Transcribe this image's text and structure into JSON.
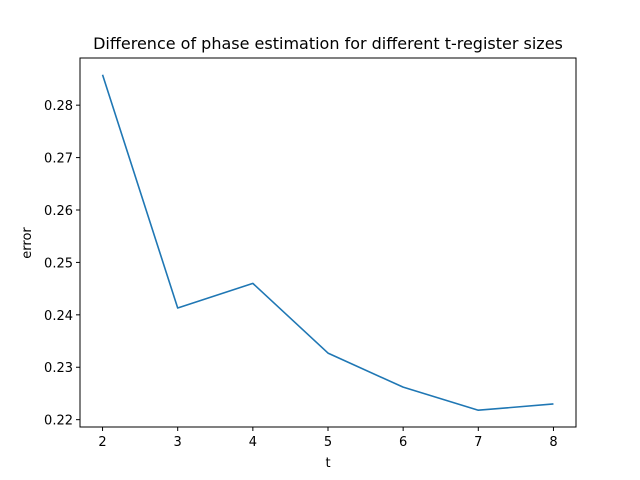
{
  "chart_data": {
    "type": "line",
    "title": "Difference of phase estimation for different t-register sizes",
    "xlabel": "t",
    "ylabel": "error",
    "x": [
      2,
      3,
      4,
      5,
      6,
      7,
      8
    ],
    "series": [
      {
        "values": [
          0.2858,
          0.2413,
          0.246,
          0.2327,
          0.2262,
          0.2218,
          0.223
        ],
        "color": "#1f77b4"
      }
    ],
    "xlim": [
      1.7,
      8.3
    ],
    "ylim": [
      0.2186,
      0.289
    ],
    "xticks": [
      2,
      3,
      4,
      5,
      6,
      7,
      8
    ],
    "xtick_labels": [
      "2",
      "3",
      "4",
      "5",
      "6",
      "7",
      "8"
    ],
    "yticks": [
      0.22,
      0.23,
      0.24,
      0.25,
      0.26,
      0.27,
      0.28
    ],
    "ytick_labels": [
      "0.22",
      "0.23",
      "0.24",
      "0.25",
      "0.26",
      "0.27",
      "0.28"
    ],
    "grid": false,
    "legend": false
  }
}
